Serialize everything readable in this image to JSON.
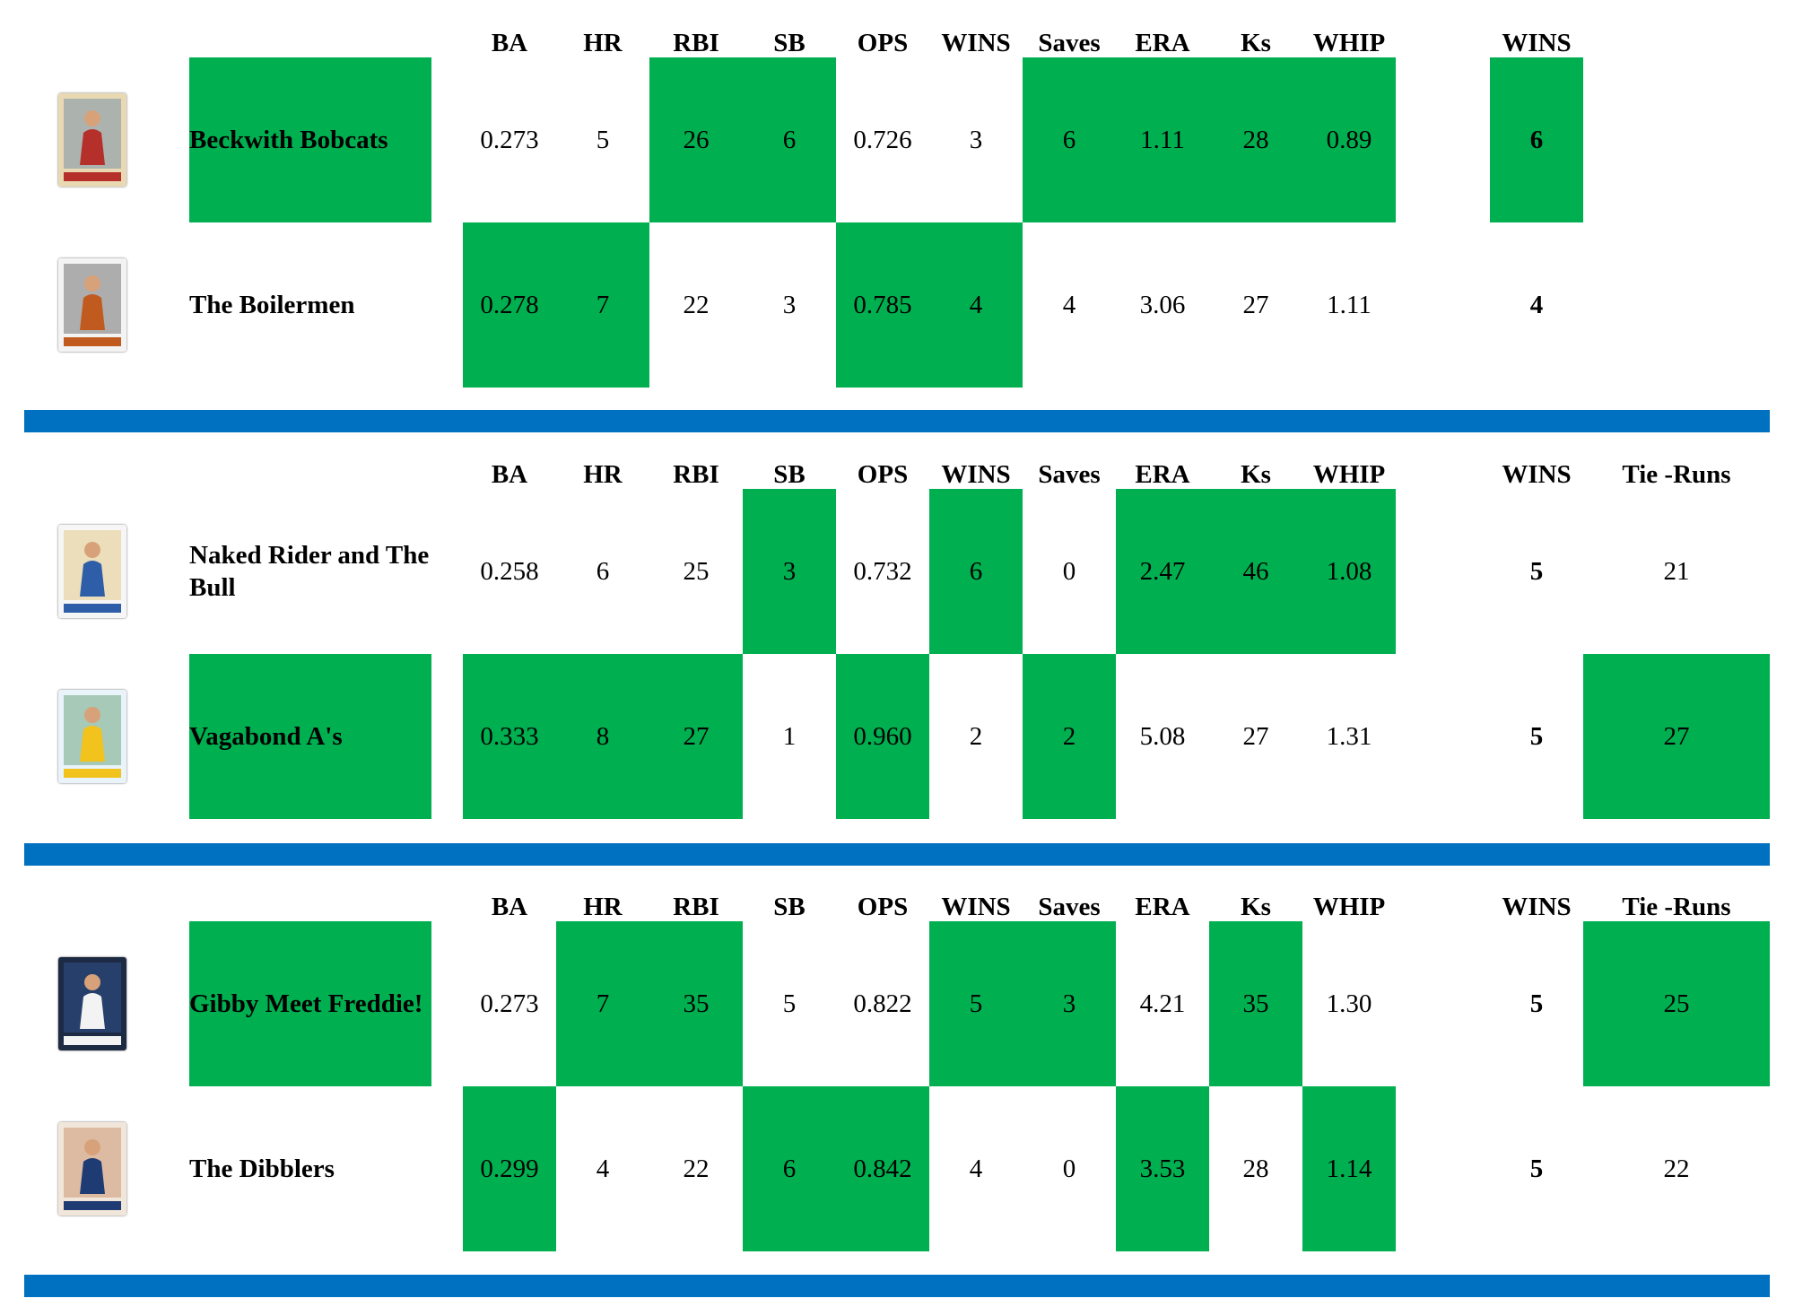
{
  "columns": [
    "BA",
    "HR",
    "RBI",
    "SB",
    "OPS",
    "WINS",
    "Saves",
    "ERA",
    "Ks",
    "WHIP"
  ],
  "total_label": "WINS",
  "tie_label": "Tie -Runs",
  "colors": {
    "win": "#00b050",
    "divider": "#0070c0"
  },
  "matchups": [
    {
      "show_tie": false,
      "teams": [
        {
          "name": "Beckwith Bobcats",
          "name_win": true,
          "logo": "baseball-card-icon",
          "stats": [
            "0.273",
            "5",
            "26",
            "6",
            "0.726",
            "3",
            "6",
            "1.11",
            "28",
            "0.89"
          ],
          "wins": [
            false,
            false,
            true,
            true,
            false,
            false,
            true,
            true,
            true,
            true
          ],
          "total": "6",
          "total_win": true,
          "tie": "",
          "tie_win": false
        },
        {
          "name": "The Boilermen",
          "name_win": false,
          "logo": "baseball-card-icon",
          "stats": [
            "0.278",
            "7",
            "22",
            "3",
            "0.785",
            "4",
            "4",
            "3.06",
            "27",
            "1.11"
          ],
          "wins": [
            true,
            true,
            false,
            false,
            true,
            true,
            false,
            false,
            false,
            false
          ],
          "total": "4",
          "total_win": false,
          "tie": "",
          "tie_win": false
        }
      ]
    },
    {
      "show_tie": true,
      "teams": [
        {
          "name": "Naked Rider and The Bull",
          "name_win": false,
          "logo": "baseball-card-icon",
          "stats": [
            "0.258",
            "6",
            "25",
            "3",
            "0.732",
            "6",
            "0",
            "2.47",
            "46",
            "1.08"
          ],
          "wins": [
            false,
            false,
            false,
            true,
            false,
            true,
            false,
            true,
            true,
            true
          ],
          "total": "5",
          "total_win": false,
          "tie": "21",
          "tie_win": false
        },
        {
          "name": "Vagabond A's",
          "name_win": true,
          "logo": "baseball-card-icon",
          "stats": [
            "0.333",
            "8",
            "27",
            "1",
            "0.960",
            "2",
            "2",
            "5.08",
            "27",
            "1.31"
          ],
          "wins": [
            true,
            true,
            true,
            false,
            true,
            false,
            true,
            false,
            false,
            false
          ],
          "total": "5",
          "total_win": false,
          "tie": "27",
          "tie_win": true
        }
      ]
    },
    {
      "show_tie": true,
      "teams": [
        {
          "name": "Gibby Meet Freddie!",
          "name_win": true,
          "logo": "baseball-card-icon",
          "stats": [
            "0.273",
            "7",
            "35",
            "5",
            "0.822",
            "5",
            "3",
            "4.21",
            "35",
            "1.30"
          ],
          "wins": [
            false,
            true,
            true,
            false,
            false,
            true,
            true,
            false,
            true,
            false
          ],
          "total": "5",
          "total_win": false,
          "tie": "25",
          "tie_win": true
        },
        {
          "name": "The Dibblers",
          "name_win": false,
          "logo": "baseball-card-icon",
          "stats": [
            "0.299",
            "4",
            "22",
            "6",
            "0.842",
            "4",
            "0",
            "3.53",
            "28",
            "1.14"
          ],
          "wins": [
            true,
            false,
            false,
            true,
            true,
            false,
            false,
            true,
            false,
            true
          ],
          "total": "5",
          "total_win": false,
          "tie": "22",
          "tie_win": false
        }
      ]
    }
  ]
}
